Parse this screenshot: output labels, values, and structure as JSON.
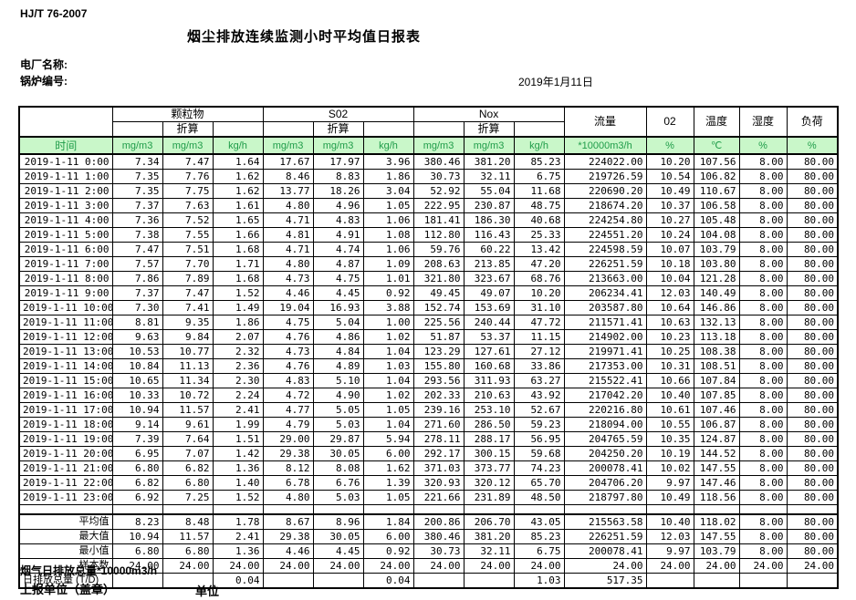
{
  "page": {
    "code": "HJ/T  76-2007",
    "title": "烟尘排放连续监测小时平均值日报表",
    "plant_label": "电厂名称:",
    "boiler_label": "锅炉编号:",
    "date": "2019年1月11日"
  },
  "table": {
    "time_header": "时间",
    "conv_label": "折算",
    "pollutant_groups": [
      {
        "name": "颗粒物",
        "units": [
          "mg/m3",
          "mg/m3",
          "kg/h"
        ]
      },
      {
        "name": "S02",
        "units": [
          "mg/m3",
          "mg/m3",
          "kg/h"
        ]
      },
      {
        "name": "Nox",
        "units": [
          "mg/m3",
          "mg/m3",
          "kg/h"
        ]
      }
    ],
    "single_columns": [
      {
        "name": "流量",
        "unit": "*10000m3/h"
      },
      {
        "name": "02",
        "unit": "%"
      },
      {
        "name": "温度",
        "unit": "℃"
      },
      {
        "name": "湿度",
        "unit": "%"
      },
      {
        "name": "负荷",
        "unit": "%"
      }
    ],
    "rows": [
      {
        "time": "2019-1-11  0:00",
        "values": [
          "7.34",
          "7.47",
          "1.64",
          "17.67",
          "17.97",
          "3.96",
          "380.46",
          "381.20",
          "85.23",
          "224022.00",
          "10.20",
          "107.56",
          "8.00",
          "80.00"
        ]
      },
      {
        "time": "2019-1-11  1:00",
        "values": [
          "7.35",
          "7.76",
          "1.62",
          "8.46",
          "8.83",
          "1.86",
          "30.73",
          "32.11",
          "6.75",
          "219726.59",
          "10.54",
          "106.82",
          "8.00",
          "80.00"
        ]
      },
      {
        "time": "2019-1-11  2:00",
        "values": [
          "7.35",
          "7.75",
          "1.62",
          "13.77",
          "18.26",
          "3.04",
          "52.92",
          "55.04",
          "11.68",
          "220690.20",
          "10.49",
          "110.67",
          "8.00",
          "80.00"
        ]
      },
      {
        "time": "2019-1-11  3:00",
        "values": [
          "7.37",
          "7.63",
          "1.61",
          "4.80",
          "4.96",
          "1.05",
          "222.95",
          "230.87",
          "48.75",
          "218674.20",
          "10.37",
          "106.58",
          "8.00",
          "80.00"
        ]
      },
      {
        "time": "2019-1-11  4:00",
        "values": [
          "7.36",
          "7.52",
          "1.65",
          "4.71",
          "4.83",
          "1.06",
          "181.41",
          "186.30",
          "40.68",
          "224254.80",
          "10.27",
          "105.48",
          "8.00",
          "80.00"
        ]
      },
      {
        "time": "2019-1-11  5:00",
        "values": [
          "7.38",
          "7.55",
          "1.66",
          "4.81",
          "4.91",
          "1.08",
          "112.80",
          "116.43",
          "25.33",
          "224551.20",
          "10.24",
          "104.08",
          "8.00",
          "80.00"
        ]
      },
      {
        "time": "2019-1-11  6:00",
        "values": [
          "7.47",
          "7.51",
          "1.68",
          "4.71",
          "4.74",
          "1.06",
          "59.76",
          "60.22",
          "13.42",
          "224598.59",
          "10.07",
          "103.79",
          "8.00",
          "80.00"
        ]
      },
      {
        "time": "2019-1-11  7:00",
        "values": [
          "7.57",
          "7.70",
          "1.71",
          "4.80",
          "4.87",
          "1.09",
          "208.63",
          "213.85",
          "47.20",
          "226251.59",
          "10.18",
          "103.80",
          "8.00",
          "80.00"
        ]
      },
      {
        "time": "2019-1-11  8:00",
        "values": [
          "7.86",
          "7.89",
          "1.68",
          "4.73",
          "4.75",
          "1.01",
          "321.80",
          "323.67",
          "68.76",
          "213663.00",
          "10.04",
          "121.28",
          "8.00",
          "80.00"
        ]
      },
      {
        "time": "2019-1-11  9:00",
        "values": [
          "7.37",
          "7.47",
          "1.52",
          "4.46",
          "4.45",
          "0.92",
          "49.45",
          "49.07",
          "10.20",
          "206234.41",
          "12.03",
          "140.49",
          "8.00",
          "80.00"
        ]
      },
      {
        "time": "2019-1-11 10:00",
        "values": [
          "7.30",
          "7.41",
          "1.49",
          "19.04",
          "16.93",
          "3.88",
          "152.74",
          "153.69",
          "31.10",
          "203587.80",
          "10.64",
          "146.86",
          "8.00",
          "80.00"
        ]
      },
      {
        "time": "2019-1-11 11:00",
        "values": [
          "8.81",
          "9.35",
          "1.86",
          "4.75",
          "5.04",
          "1.00",
          "225.56",
          "240.44",
          "47.72",
          "211571.41",
          "10.63",
          "132.13",
          "8.00",
          "80.00"
        ]
      },
      {
        "time": "2019-1-11 12:00",
        "values": [
          "9.63",
          "9.84",
          "2.07",
          "4.76",
          "4.86",
          "1.02",
          "51.87",
          "53.37",
          "11.15",
          "214902.00",
          "10.23",
          "113.18",
          "8.00",
          "80.00"
        ]
      },
      {
        "time": "2019-1-11 13:00",
        "values": [
          "10.53",
          "10.77",
          "2.32",
          "4.73",
          "4.84",
          "1.04",
          "123.29",
          "127.61",
          "27.12",
          "219971.41",
          "10.25",
          "108.38",
          "8.00",
          "80.00"
        ]
      },
      {
        "time": "2019-1-11 14:00",
        "values": [
          "10.84",
          "11.13",
          "2.36",
          "4.76",
          "4.89",
          "1.03",
          "155.80",
          "160.68",
          "33.86",
          "217353.00",
          "10.31",
          "108.51",
          "8.00",
          "80.00"
        ]
      },
      {
        "time": "2019-1-11 15:00",
        "values": [
          "10.65",
          "11.34",
          "2.30",
          "4.83",
          "5.10",
          "1.04",
          "293.56",
          "311.93",
          "63.27",
          "215522.41",
          "10.66",
          "107.84",
          "8.00",
          "80.00"
        ]
      },
      {
        "time": "2019-1-11 16:00",
        "values": [
          "10.33",
          "10.72",
          "2.24",
          "4.72",
          "4.90",
          "1.02",
          "202.33",
          "210.63",
          "43.92",
          "217042.20",
          "10.40",
          "107.85",
          "8.00",
          "80.00"
        ]
      },
      {
        "time": "2019-1-11 17:00",
        "values": [
          "10.94",
          "11.57",
          "2.41",
          "4.77",
          "5.05",
          "1.05",
          "239.16",
          "253.10",
          "52.67",
          "220216.80",
          "10.61",
          "107.46",
          "8.00",
          "80.00"
        ]
      },
      {
        "time": "2019-1-11 18:00",
        "values": [
          "9.14",
          "9.61",
          "1.99",
          "4.79",
          "5.03",
          "1.04",
          "271.60",
          "286.50",
          "59.23",
          "218094.00",
          "10.55",
          "106.87",
          "8.00",
          "80.00"
        ]
      },
      {
        "time": "2019-1-11 19:00",
        "values": [
          "7.39",
          "7.64",
          "1.51",
          "29.00",
          "29.87",
          "5.94",
          "278.11",
          "288.17",
          "56.95",
          "204765.59",
          "10.35",
          "124.87",
          "8.00",
          "80.00"
        ]
      },
      {
        "time": "2019-1-11 20:00",
        "values": [
          "6.95",
          "7.07",
          "1.42",
          "29.38",
          "30.05",
          "6.00",
          "292.17",
          "300.15",
          "59.68",
          "204250.20",
          "10.19",
          "144.52",
          "8.00",
          "80.00"
        ]
      },
      {
        "time": "2019-1-11 21:00",
        "values": [
          "6.80",
          "6.82",
          "1.36",
          "8.12",
          "8.08",
          "1.62",
          "371.03",
          "373.77",
          "74.23",
          "200078.41",
          "10.02",
          "147.55",
          "8.00",
          "80.00"
        ]
      },
      {
        "time": "2019-1-11 22:00",
        "values": [
          "6.82",
          "6.80",
          "1.40",
          "6.78",
          "6.76",
          "1.39",
          "320.93",
          "320.12",
          "65.70",
          "204706.20",
          "9.97",
          "147.46",
          "8.00",
          "80.00"
        ]
      },
      {
        "time": "2019-1-11 23:00",
        "values": [
          "6.92",
          "7.25",
          "1.52",
          "4.80",
          "5.03",
          "1.05",
          "221.66",
          "231.89",
          "48.50",
          "218797.80",
          "10.49",
          "118.56",
          "8.00",
          "80.00"
        ]
      }
    ],
    "summary_rows": [
      {
        "label": "平均值",
        "values": [
          "8.23",
          "8.48",
          "1.78",
          "8.67",
          "8.96",
          "1.84",
          "200.86",
          "206.70",
          "43.05",
          "215563.58",
          "10.40",
          "118.02",
          "8.00",
          "80.00"
        ]
      },
      {
        "label": "最大值",
        "values": [
          "10.94",
          "11.57",
          "2.41",
          "29.38",
          "30.05",
          "6.00",
          "380.46",
          "381.20",
          "85.23",
          "226251.59",
          "12.03",
          "147.55",
          "8.00",
          "80.00"
        ]
      },
      {
        "label": "最小值",
        "values": [
          "6.80",
          "6.80",
          "1.36",
          "4.46",
          "4.45",
          "0.92",
          "30.73",
          "32.11",
          "6.75",
          "200078.41",
          "9.97",
          "103.79",
          "8.00",
          "80.00"
        ]
      },
      {
        "label": "样本数",
        "values": [
          "24.00",
          "24.00",
          "24.00",
          "24.00",
          "24.00",
          "24.00",
          "24.00",
          "24.00",
          "24.00",
          "24.00",
          "24.00",
          "24.00",
          "24.00",
          "24.00"
        ]
      },
      {
        "label": "日排放总量 (T/D)",
        "values": [
          "",
          "",
          "0.04",
          "",
          "",
          "0.04",
          "",
          "",
          "1.03",
          "517.35",
          "",
          "",
          "",
          ""
        ]
      }
    ]
  },
  "footer": {
    "total_note": "烟气日排放总量*10000m3/h",
    "stamp_label": "上报单位（盖章）",
    "unit_label": "单位"
  }
}
